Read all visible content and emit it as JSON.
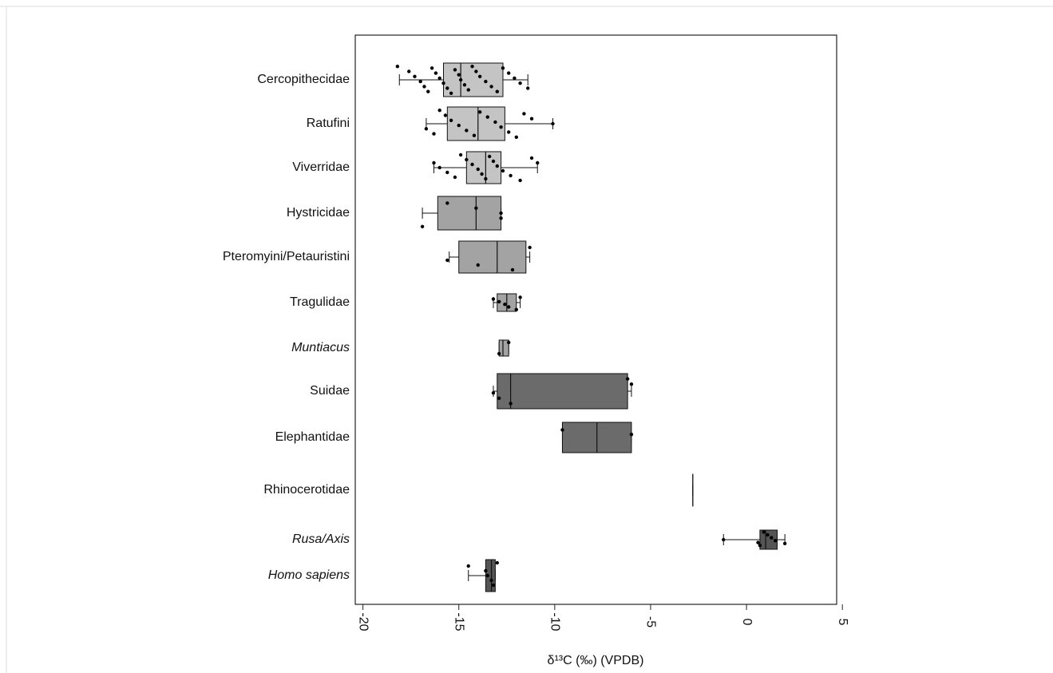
{
  "chart_data": {
    "type": "box",
    "categories": [
      "Cercopithecidae",
      "Ratufini",
      "Viverridae",
      "Hystricidae",
      "Pteromyini/Petauristini",
      "Tragulidae",
      "Muntiacus",
      "Suidae",
      "Elephantidae",
      "Rhinocerotidae",
      "Rusa/Axis",
      "Homo sapiens"
    ],
    "italic": [
      false,
      false,
      false,
      false,
      false,
      false,
      true,
      false,
      false,
      false,
      true,
      true
    ],
    "colors": [
      "#c4c4c4",
      "#c4c4c4",
      "#c4c4c4",
      "#a3a3a3",
      "#a3a3a3",
      "#a3a3a3",
      "#a3a3a3",
      "#6b6b6b",
      "#6b6b6b",
      "#555555",
      "#555555",
      "#555555"
    ],
    "boxes": [
      {
        "min": -18.1,
        "q1": -15.8,
        "median": -14.9,
        "q3": -12.7,
        "max": -11.4
      },
      {
        "min": -16.7,
        "q1": -15.6,
        "median": -14.0,
        "q3": -12.6,
        "max": -10.1
      },
      {
        "min": -16.3,
        "q1": -14.6,
        "median": -13.6,
        "q3": -12.8,
        "max": -10.9
      },
      {
        "min": -16.9,
        "q1": -16.1,
        "median": -14.1,
        "q3": -12.8,
        "max": -12.8
      },
      {
        "min": -15.5,
        "q1": -15.0,
        "median": -13.0,
        "q3": -11.5,
        "max": -11.3
      },
      {
        "min": -13.2,
        "q1": -13.0,
        "median": -12.5,
        "q3": -12.0,
        "max": -11.8
      },
      {
        "min": -12.9,
        "q1": -12.9,
        "median": -12.7,
        "q3": -12.4,
        "max": -12.4
      },
      {
        "min": -13.2,
        "q1": -13.0,
        "median": -12.3,
        "q3": -6.2,
        "max": -6.0
      },
      {
        "min": -9.6,
        "q1": -9.6,
        "median": -7.8,
        "q3": -6.0,
        "max": -6.0
      },
      {
        "min": -2.8,
        "q1": -2.8,
        "median": -2.8,
        "q3": -2.8,
        "max": -2.8
      },
      {
        "min": -1.2,
        "q1": 0.7,
        "median": 1.0,
        "q3": 1.6,
        "max": 2.0
      },
      {
        "min": -14.5,
        "q1": -13.6,
        "median": -13.3,
        "q3": -13.1,
        "max": -13.1
      }
    ],
    "points": [
      [
        -18.2,
        -17.6,
        -17.3,
        -17.0,
        -16.8,
        -16.6,
        -16.4,
        -16.2,
        -16.0,
        -15.8,
        -15.6,
        -15.4,
        -15.2,
        -15.0,
        -14.9,
        -14.7,
        -14.5,
        -14.3,
        -14.1,
        -13.9,
        -13.6,
        -13.3,
        -13.0,
        -12.7,
        -12.4,
        -12.1,
        -11.8,
        -11.4
      ],
      [
        -16.7,
        -16.3,
        -16.0,
        -15.7,
        -15.4,
        -15.0,
        -14.6,
        -14.2,
        -13.9,
        -13.5,
        -13.1,
        -12.8,
        -12.4,
        -12.0,
        -11.6,
        -11.2,
        -10.1
      ],
      [
        -16.3,
        -16.0,
        -15.6,
        -15.2,
        -14.9,
        -14.6,
        -14.3,
        -14.0,
        -13.8,
        -13.6,
        -13.4,
        -13.2,
        -13.0,
        -12.7,
        -12.3,
        -11.8,
        -11.2,
        -10.9
      ],
      [
        -16.9,
        -15.6,
        -14.1,
        -12.8,
        -12.8
      ],
      [
        -15.6,
        -14.0,
        -12.2,
        -11.3
      ],
      [
        -13.2,
        -12.9,
        -12.6,
        -12.4,
        -12.0,
        -11.8
      ],
      [
        -12.9,
        -12.4
      ],
      [
        -13.2,
        -12.9,
        -12.3,
        -6.2,
        -6.0
      ],
      [
        -9.6,
        -6.0
      ],
      [],
      [
        -1.2,
        0.6,
        0.7,
        0.9,
        1.1,
        1.3,
        1.5,
        2.0
      ],
      [
        -14.5,
        -13.6,
        -13.5,
        -13.3,
        -13.2,
        -13.0
      ]
    ],
    "xlabel": "δ¹³C (‰) (VPDB)",
    "xlim": [
      -20.4,
      4.7
    ],
    "xticks": [
      -20,
      -15,
      -10,
      -5,
      0,
      5
    ]
  }
}
